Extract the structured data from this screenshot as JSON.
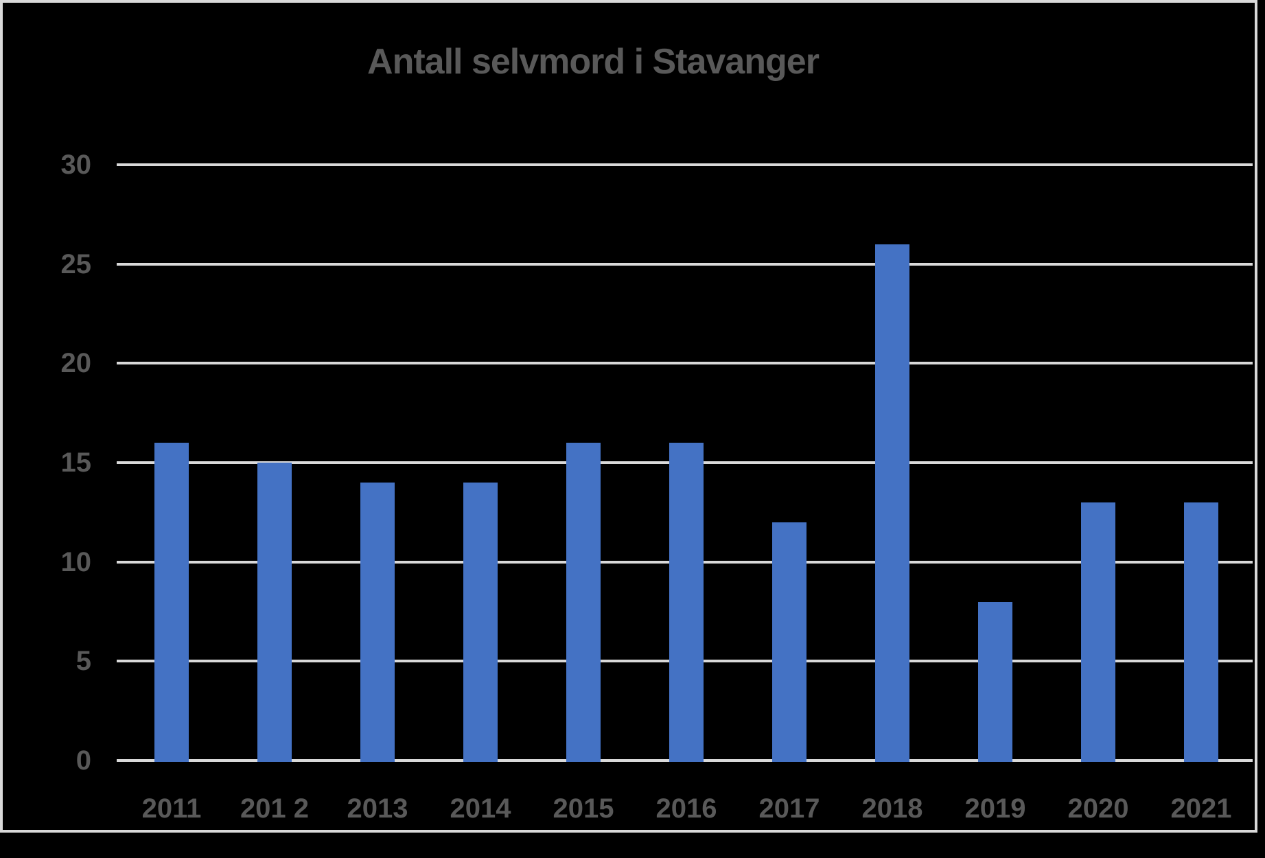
{
  "chart_data": {
    "type": "bar",
    "title": "Antall selvmord i Stavanger",
    "categories": [
      "2011",
      "201 2",
      "2013",
      "2014",
      "2015",
      "2016",
      "2017",
      "2018",
      "2019",
      "2020",
      "2021"
    ],
    "values": [
      16,
      15,
      14,
      14,
      16,
      16,
      12,
      26,
      8,
      13,
      13
    ],
    "xlabel": "",
    "ylabel": "",
    "ylim": [
      0,
      30
    ],
    "yticks": [
      0,
      5,
      10,
      15,
      20,
      25,
      30
    ],
    "grid": true,
    "legend": "none",
    "series_name": "",
    "colors": {
      "bar": "#4472C4",
      "gridline": "#D9D9D9",
      "text": "#595959",
      "background": "#000000",
      "frame_border": "#D9D9D9"
    }
  }
}
